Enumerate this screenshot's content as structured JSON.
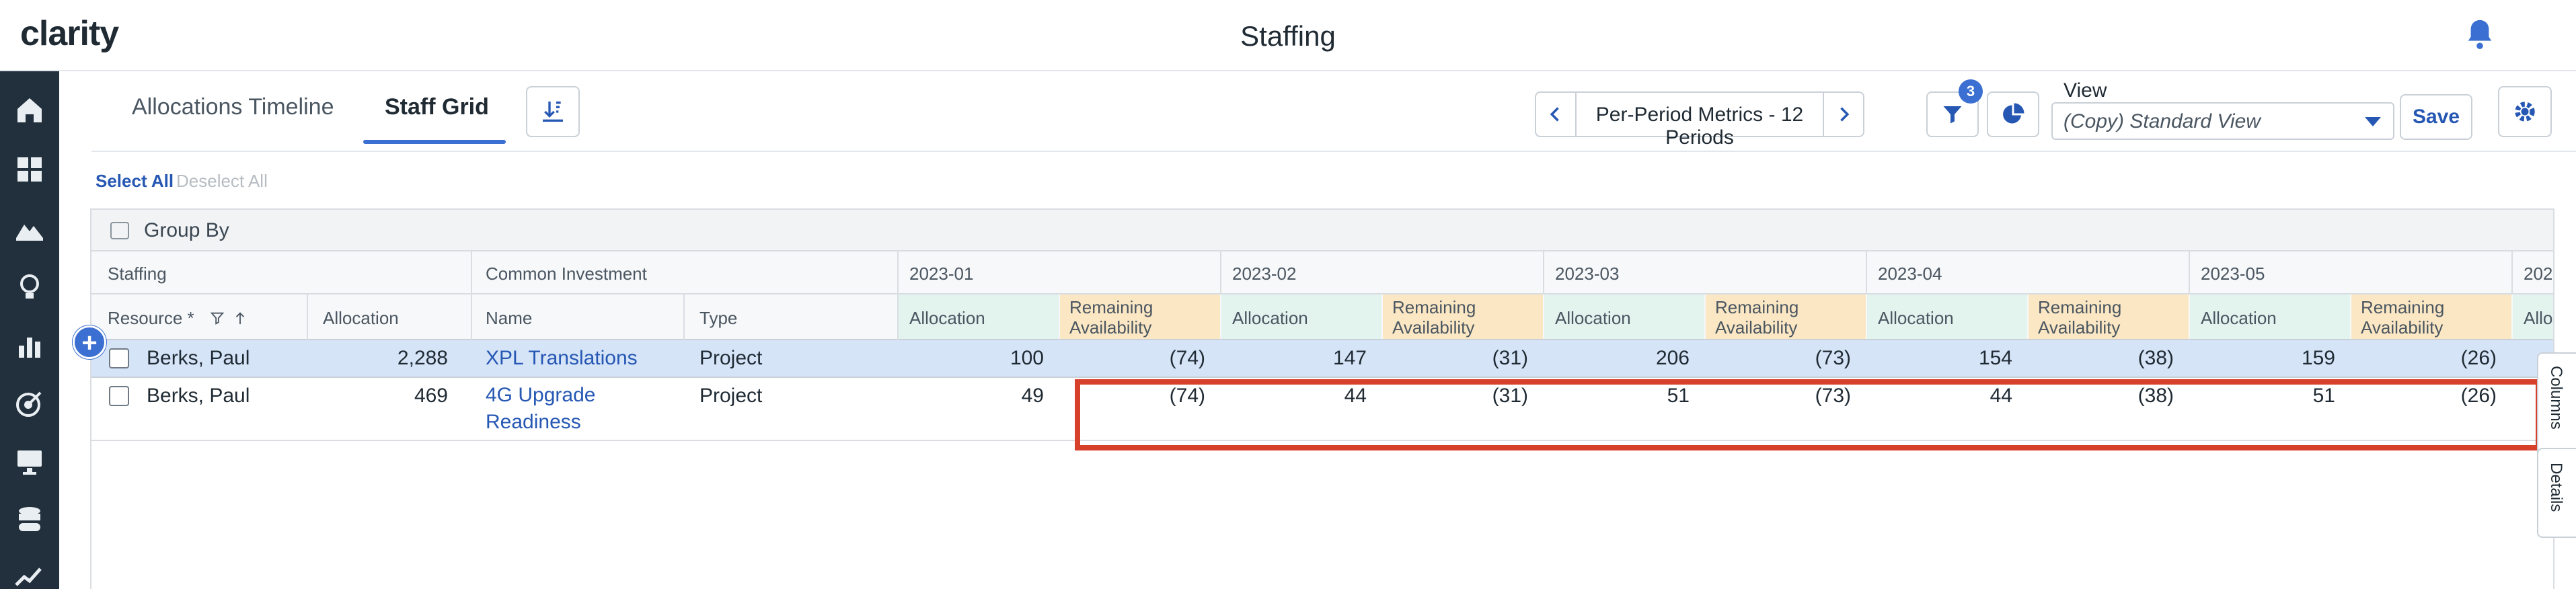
{
  "app": {
    "logo_text": "clarity",
    "page_title": "Staffing"
  },
  "nav": {
    "icons": [
      "home-icon",
      "dashboard-icon",
      "mountain-chart-icon",
      "lightbulb-icon",
      "bar-chart-icon",
      "target-icon",
      "monitor-icon",
      "database-icon",
      "trend-line-icon"
    ]
  },
  "toolbar": {
    "tabs": [
      {
        "label": "Allocations Timeline",
        "active": false
      },
      {
        "label": "Staff Grid",
        "active": true
      }
    ],
    "metrics_label": "Per-Period Metrics - 12 Periods",
    "filter_count": "3",
    "view_label": "View",
    "view_value": "(Copy) Standard View",
    "save_label": "Save"
  },
  "selection": {
    "select_all": "Select All",
    "deselect_all": "Deselect All"
  },
  "grid": {
    "group_by_label": "Group By",
    "group_headers": {
      "staffing": "Staffing",
      "investment": "Common Investment"
    },
    "column_headers": {
      "resource": "Resource",
      "required_mark": "*",
      "allocation": "Allocation",
      "name": "Name",
      "type": "Type"
    },
    "periods": [
      {
        "label": "2023-01",
        "alloc_header": "Allocation",
        "rem_header_1": "Remaining",
        "rem_header_2": "Availability"
      },
      {
        "label": "2023-02",
        "alloc_header": "Allocation",
        "rem_header_1": "Remaining",
        "rem_header_2": "Availability"
      },
      {
        "label": "2023-03",
        "alloc_header": "Allocation",
        "rem_header_1": "Remaining",
        "rem_header_2": "Availability"
      },
      {
        "label": "2023-04",
        "alloc_header": "Allocation",
        "rem_header_1": "Remaining",
        "rem_header_2": "Availability"
      },
      {
        "label": "2023-05",
        "alloc_header": "Allocation",
        "rem_header_1": "Remaining",
        "rem_header_2": "Availability"
      },
      {
        "label": "202",
        "alloc_header": "Allo"
      }
    ],
    "rows": [
      {
        "resource": "Berks, Paul",
        "allocation": "2,288",
        "name": "XPL Translations",
        "type": "Project",
        "values": [
          "100",
          "(74)",
          "147",
          "(31)",
          "206",
          "(73)",
          "154",
          "(38)",
          "159",
          "(26)"
        ]
      },
      {
        "resource": "Berks, Paul",
        "allocation": "469",
        "name_line1": "4G Upgrade",
        "name_line2": "Readiness",
        "type": "Project",
        "values": [
          "49",
          "(74)",
          "44",
          "(31)",
          "51",
          "(73)",
          "44",
          "(38)",
          "51",
          "(26)"
        ]
      }
    ]
  },
  "side_tabs": {
    "columns": "Columns",
    "details": "Details"
  },
  "colors": {
    "accent": "#3b6fd1",
    "nav_bg": "#21303c",
    "alloc_header_bg": "#e3f3ee",
    "remaining_header_bg": "#fbe7c3",
    "selected_row_bg": "#d6e4f8",
    "highlight_border": "#d7402b"
  }
}
